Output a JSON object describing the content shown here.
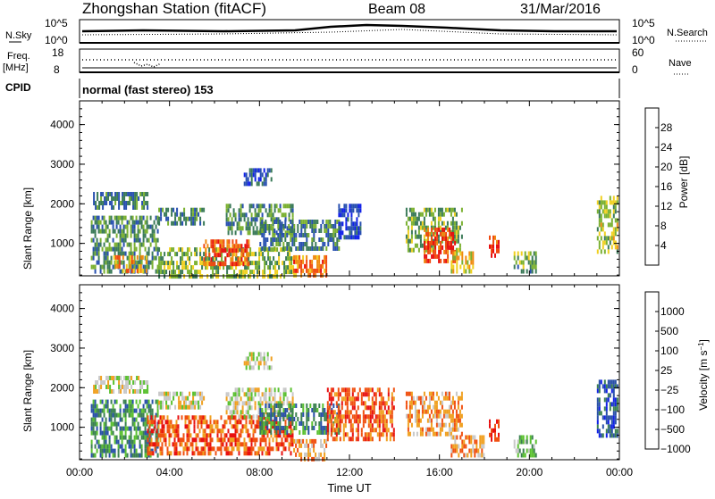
{
  "header": {
    "station": "Zhongshan Station (fitACF)",
    "beam": "Beam 08",
    "date": "31/Mar/2016"
  },
  "top_panels": {
    "nsky_label": "N.Sky",
    "nsky_ticks": [
      "10^5",
      "10^0"
    ],
    "nsearch_label": "N.Search",
    "nsearch_ticks": [
      "10^5",
      "10^0"
    ],
    "freq_label": "Freq.",
    "freq_unit": "[MHz]",
    "freq_ticks": [
      "18",
      "8"
    ],
    "nave_label": "Nave",
    "nave_ticks": [
      "60",
      "0"
    ],
    "cpid_label": "CPID",
    "cpid_text": "normal (fast stereo) 153"
  },
  "colors": {
    "power_scale": [
      "#1020e8",
      "#2850b0",
      "#3a7a58",
      "#7ab030",
      "#f0d020",
      "#f08a10",
      "#f04a10",
      "#e81010"
    ],
    "velocity_scale": [
      "#e81010",
      "#f05010",
      "#f0a020",
      "#c8c8c8",
      "#5ac030",
      "#3a8050",
      "#2850a8",
      "#1020e8"
    ]
  },
  "chart_data": [
    {
      "type": "heatmap",
      "title": "Power",
      "xlabel": "",
      "ylabel": "Slant Range [km]",
      "x_ticks": [
        "00:00",
        "04:00",
        "08:00",
        "12:00",
        "16:00",
        "20:00",
        "00:00"
      ],
      "x_range_hours": [
        0,
        24
      ],
      "y_ticks": [
        "1000",
        "2000",
        "3000",
        "4000"
      ],
      "y_range": [
        180,
        4600
      ],
      "colorbar_label": "Power [dB]",
      "colorbar_ticks": [
        "4",
        "8",
        "12",
        "16",
        "20",
        "24",
        "28"
      ],
      "colorbar_range": [
        0,
        32
      ],
      "regions": [
        {
          "x0": 0.6,
          "x1": 3.0,
          "y0": 1900,
          "y1": 2300,
          "level": 9
        },
        {
          "x0": 0.5,
          "x1": 3.5,
          "y0": 300,
          "y1": 1700,
          "level": 11
        },
        {
          "x0": 1.5,
          "x1": 3.0,
          "y0": 350,
          "y1": 700,
          "level": 22
        },
        {
          "x0": 3.5,
          "x1": 5.5,
          "y0": 1500,
          "y1": 1900,
          "level": 10
        },
        {
          "x0": 3.5,
          "x1": 9.5,
          "y0": 200,
          "y1": 900,
          "level": 14
        },
        {
          "x0": 5.5,
          "x1": 7.5,
          "y0": 500,
          "y1": 1100,
          "level": 26
        },
        {
          "x0": 6.5,
          "x1": 9.5,
          "y0": 1300,
          "y1": 2000,
          "level": 11
        },
        {
          "x0": 7.3,
          "x1": 8.5,
          "y0": 2500,
          "y1": 2900,
          "level": 7
        },
        {
          "x0": 8.0,
          "x1": 11.5,
          "y0": 900,
          "y1": 1600,
          "level": 9
        },
        {
          "x0": 9.5,
          "x1": 11.0,
          "y0": 200,
          "y1": 700,
          "level": 24
        },
        {
          "x0": 11.5,
          "x1": 12.5,
          "y0": 1200,
          "y1": 2000,
          "level": 5
        },
        {
          "x0": 14.5,
          "x1": 17.0,
          "y0": 800,
          "y1": 1900,
          "level": 13
        },
        {
          "x0": 15.3,
          "x1": 16.7,
          "y0": 600,
          "y1": 1400,
          "level": 27
        },
        {
          "x0": 16.5,
          "x1": 17.5,
          "y0": 300,
          "y1": 800,
          "level": 18
        },
        {
          "x0": 18.2,
          "x1": 18.6,
          "y0": 700,
          "y1": 1200,
          "level": 28
        },
        {
          "x0": 19.3,
          "x1": 20.3,
          "y0": 300,
          "y1": 800,
          "level": 12
        },
        {
          "x0": 23.0,
          "x1": 23.9,
          "y0": 800,
          "y1": 2200,
          "level": 16
        }
      ]
    },
    {
      "type": "heatmap",
      "title": "Velocity",
      "xlabel": "Time UT",
      "ylabel": "Slant Range [km]",
      "x_ticks": [
        "00:00",
        "04:00",
        "08:00",
        "12:00",
        "16:00",
        "20:00",
        "00:00"
      ],
      "x_range_hours": [
        0,
        24
      ],
      "y_ticks": [
        "1000",
        "2000",
        "3000",
        "4000"
      ],
      "y_range": [
        180,
        4600
      ],
      "colorbar_label": "Velocity [m s^-1]",
      "colorbar_ticks": [
        "1000",
        "500",
        "100",
        "25",
        "−25",
        "−100",
        "−500",
        "−1000"
      ],
      "regions": [
        {
          "x0": 0.6,
          "x1": 3.0,
          "y0": 1900,
          "y1": 2300,
          "level": 3
        },
        {
          "x0": 0.5,
          "x1": 3.5,
          "y0": 300,
          "y1": 1700,
          "level": 5
        },
        {
          "x0": 3.0,
          "x1": 9.5,
          "y0": 300,
          "y1": 1300,
          "level": 1
        },
        {
          "x0": 3.5,
          "x1": 5.5,
          "y0": 1500,
          "y1": 1900,
          "level": 3
        },
        {
          "x0": 6.5,
          "x1": 9.5,
          "y0": 1300,
          "y1": 2000,
          "level": 3
        },
        {
          "x0": 7.3,
          "x1": 8.5,
          "y0": 2500,
          "y1": 2900,
          "level": 3
        },
        {
          "x0": 8.0,
          "x1": 11.5,
          "y0": 900,
          "y1": 1600,
          "level": 5
        },
        {
          "x0": 9.5,
          "x1": 11.0,
          "y0": 200,
          "y1": 700,
          "level": 2
        },
        {
          "x0": 11.0,
          "x1": 14.0,
          "y0": 700,
          "y1": 2000,
          "level": 1
        },
        {
          "x0": 14.5,
          "x1": 17.0,
          "y0": 800,
          "y1": 1900,
          "level": 2
        },
        {
          "x0": 16.5,
          "x1": 18.0,
          "y0": 300,
          "y1": 800,
          "level": 2
        },
        {
          "x0": 18.2,
          "x1": 18.6,
          "y0": 700,
          "y1": 1200,
          "level": 0
        },
        {
          "x0": 19.3,
          "x1": 20.3,
          "y0": 300,
          "y1": 800,
          "level": 4
        },
        {
          "x0": 23.0,
          "x1": 23.9,
          "y0": 800,
          "y1": 2200,
          "level": 6
        }
      ]
    }
  ]
}
